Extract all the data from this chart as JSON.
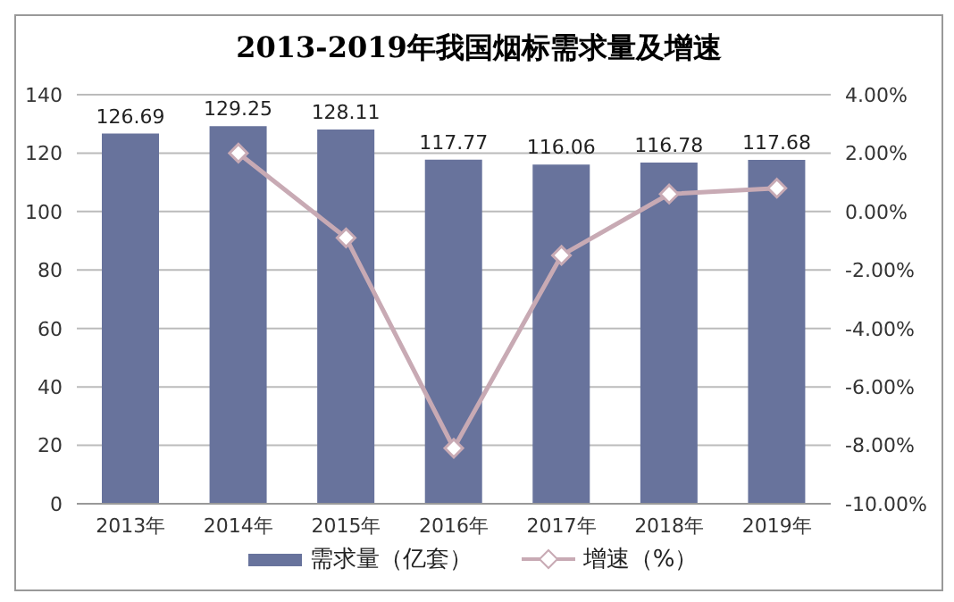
{
  "chart_data": {
    "type": "bar",
    "title": "2013-2019年我国烟标需求量及增速",
    "categories": [
      "2013年",
      "2014年",
      "2015年",
      "2016年",
      "2017年",
      "2018年",
      "2019年"
    ],
    "series": [
      {
        "name": "需求量（亿套）",
        "color": "#68739c",
        "values": [
          126.69,
          129.25,
          128.11,
          117.77,
          116.06,
          116.78,
          117.68
        ],
        "value_labels": [
          "126.69",
          "129.25",
          "128.11",
          "117.77",
          "116.06",
          "116.78",
          "117.68"
        ]
      },
      {
        "name": "增速（%）",
        "type": "line",
        "axis": "y2",
        "color": "#c8aab4",
        "marker": "diamond",
        "values": [
          null,
          2.0,
          -0.9,
          -8.1,
          -1.5,
          0.6,
          0.8
        ]
      }
    ],
    "ylim": [
      0,
      140
    ],
    "yticks": [
      0,
      20,
      40,
      60,
      80,
      100,
      120,
      140
    ],
    "y2lim": [
      -10,
      4
    ],
    "y2ticks": [
      {
        "value": -10,
        "label": "-10.00%"
      },
      {
        "value": -8,
        "label": "-8.00%"
      },
      {
        "value": -6,
        "label": "-6.00%"
      },
      {
        "value": -4,
        "label": "-4.00%"
      },
      {
        "value": -2,
        "label": "-2.00%"
      },
      {
        "value": 0,
        "label": "0.00%"
      },
      {
        "value": 2,
        "label": "2.00%"
      },
      {
        "value": 4,
        "label": "4.00%"
      }
    ],
    "grid": "y",
    "legend": "bottom"
  }
}
